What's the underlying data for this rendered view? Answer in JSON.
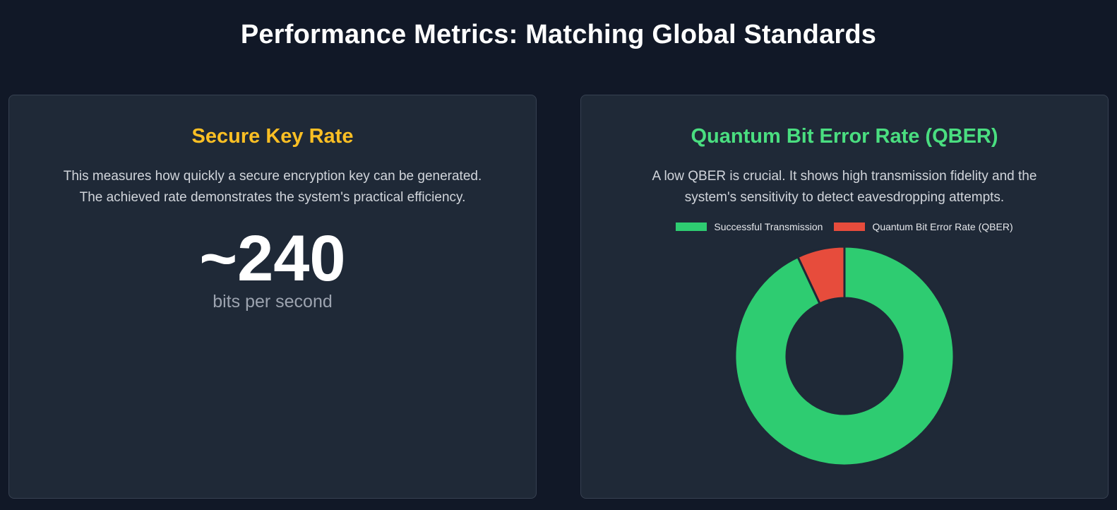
{
  "header": {
    "title": "Performance Metrics: Matching Global Standards"
  },
  "key_rate": {
    "title": "Secure Key Rate",
    "description_line1": "This measures how quickly a secure encryption key can be generated.",
    "description_line2": "The achieved rate demonstrates the system's practical efficiency.",
    "value": "~240",
    "unit": "bits per second"
  },
  "qber": {
    "title": "Quantum Bit Error Rate (QBER)",
    "description_line1": "A low QBER is crucial. It shows high transmission fidelity and the",
    "description_line2": "system's sensitivity to detect eavesdropping attempts."
  },
  "colors": {
    "background": "#111827",
    "card": "#1f2937",
    "key_rate_title": "#fbbf24",
    "qber_title": "#4ade80",
    "success": "#2ecc71",
    "error": "#e74c3c"
  },
  "chart_data": {
    "type": "pie",
    "donut": true,
    "legend_position": "top",
    "categories": [
      "Successful Transmission",
      "Quantum Bit Error Rate (QBER)"
    ],
    "values": [
      93,
      7
    ],
    "colors": [
      "#2ecc71",
      "#e74c3c"
    ]
  }
}
